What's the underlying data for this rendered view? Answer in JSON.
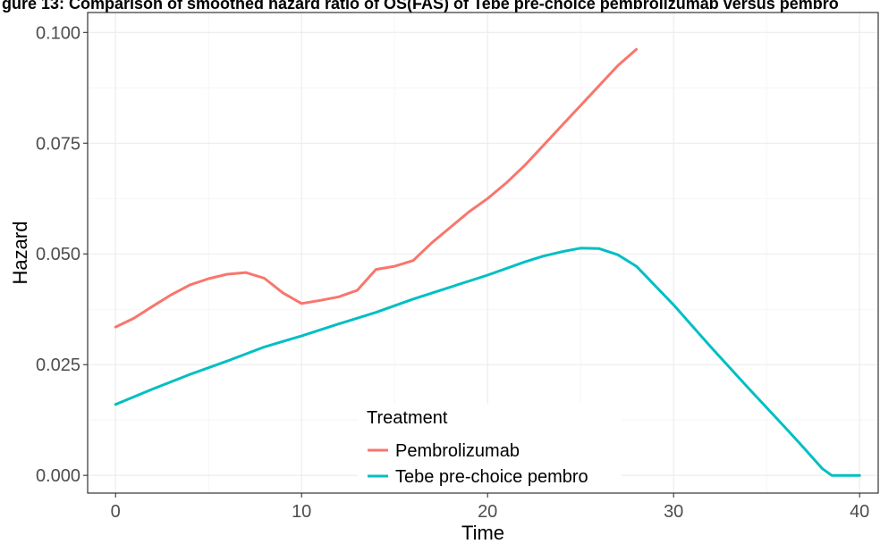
{
  "caption": "gure 13: Comparison of smoothed hazard ratio of OS(FAS) of Tebe pre-choice pembrolizumab versus pembro",
  "chart_data": {
    "type": "line",
    "xlabel": "Time",
    "ylabel": "Hazard",
    "xlim": [
      -1.5,
      41
    ],
    "ylim": [
      -0.004,
      0.1045
    ],
    "x_ticks": [
      0,
      10,
      20,
      30,
      40
    ],
    "x_tick_labels": [
      "0",
      "10",
      "20",
      "30",
      "40"
    ],
    "y_ticks": [
      0.0,
      0.025,
      0.05,
      0.075,
      0.1
    ],
    "y_tick_labels": [
      "0.000",
      "0.025",
      "0.050",
      "0.075",
      "0.100"
    ],
    "grid": true,
    "legend": {
      "title": "Treatment",
      "placement": "bottom-center (inside panel)"
    },
    "series": [
      {
        "name": "Pembrolizumab",
        "color": "#F8766D",
        "points": [
          [
            0,
            0.0335
          ],
          [
            1,
            0.0355
          ],
          [
            2,
            0.0382
          ],
          [
            3,
            0.0408
          ],
          [
            4,
            0.043
          ],
          [
            5,
            0.0444
          ],
          [
            6,
            0.0454
          ],
          [
            7,
            0.0458
          ],
          [
            8,
            0.0445
          ],
          [
            9,
            0.0412
          ],
          [
            10,
            0.0388
          ],
          [
            11,
            0.0395
          ],
          [
            12,
            0.0403
          ],
          [
            13,
            0.0418
          ],
          [
            14,
            0.0465
          ],
          [
            15,
            0.0472
          ],
          [
            16,
            0.0485
          ],
          [
            17,
            0.0525
          ],
          [
            18,
            0.056
          ],
          [
            19,
            0.0595
          ],
          [
            20,
            0.0625
          ],
          [
            21,
            0.066
          ],
          [
            22,
            0.07
          ],
          [
            23,
            0.0745
          ],
          [
            24,
            0.079
          ],
          [
            25,
            0.0835
          ],
          [
            26,
            0.088
          ],
          [
            27,
            0.0925
          ],
          [
            28,
            0.0962
          ]
        ]
      },
      {
        "name": "Tebe pre-choice pembro",
        "color": "#00BFC4",
        "points": [
          [
            0,
            0.016
          ],
          [
            2,
            0.0195
          ],
          [
            4,
            0.0228
          ],
          [
            6,
            0.0258
          ],
          [
            8,
            0.029
          ],
          [
            10,
            0.0315
          ],
          [
            12,
            0.0342
          ],
          [
            14,
            0.0368
          ],
          [
            16,
            0.0398
          ],
          [
            18,
            0.0425
          ],
          [
            20,
            0.0452
          ],
          [
            22,
            0.0482
          ],
          [
            23,
            0.0495
          ],
          [
            24,
            0.0505
          ],
          [
            25,
            0.0513
          ],
          [
            26,
            0.0512
          ],
          [
            27,
            0.0498
          ],
          [
            28,
            0.0472
          ],
          [
            30,
            0.0385
          ],
          [
            32,
            0.029
          ],
          [
            34,
            0.0198
          ],
          [
            36,
            0.0108
          ],
          [
            37,
            0.0062
          ],
          [
            38,
            0.0015
          ],
          [
            38.5,
            0.0
          ],
          [
            40,
            0.0
          ]
        ]
      }
    ]
  }
}
